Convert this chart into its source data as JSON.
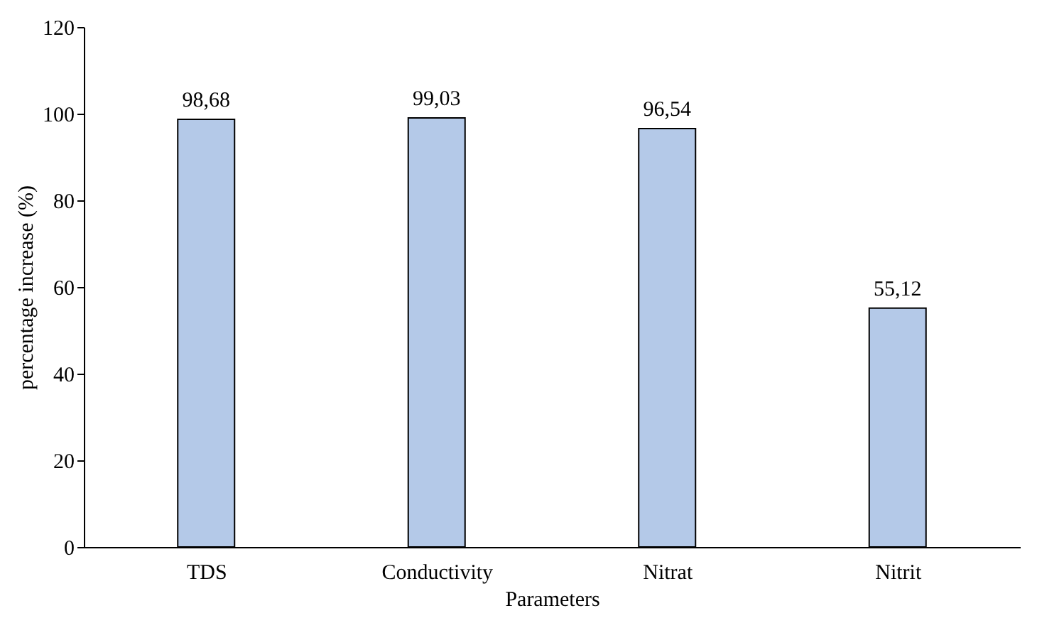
{
  "chart_data": {
    "type": "bar",
    "xlabel": "Parameters",
    "ylabel": "percentage increase (%)",
    "categories": [
      "TDS",
      "Conductivity",
      "Nitrat",
      "Nitrit"
    ],
    "values": [
      98.68,
      99.03,
      96.54,
      55.12
    ],
    "value_labels": [
      "98,68",
      "99,03",
      "96,54",
      "55,12"
    ],
    "color": "#b4c9e8",
    "ylim": [
      0,
      120
    ],
    "yticks": [
      0,
      20,
      40,
      60,
      80,
      100,
      120
    ],
    "grid": false
  }
}
